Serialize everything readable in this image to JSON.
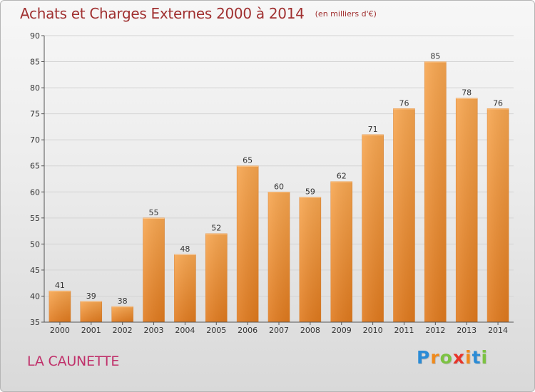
{
  "header": {
    "title": "Achats et Charges Externes 2000 à 2014",
    "subtitle": "(en milliers d'€)"
  },
  "footer": {
    "commune": "LA CAUNETTE",
    "logo_letters": [
      "P",
      "r",
      "o",
      "x",
      "i",
      "t",
      "i"
    ],
    "logo_colors": [
      "#2a8bd6",
      "#f08a1c",
      "#7cc242",
      "#e8342a",
      "#f08a1c",
      "#2a8bd6",
      "#7cc242"
    ]
  },
  "colors": {
    "title": "#a03030",
    "commune": "#c0306a",
    "bar_light": "#f7a650",
    "bar_dark": "#e07a1e",
    "grid": "#d4d4d4",
    "axis": "#555555"
  },
  "chart_data": {
    "type": "bar",
    "title": "Achats et Charges Externes 2000 à 2014",
    "subtitle": "(en milliers d'€)",
    "xlabel": "",
    "ylabel": "",
    "categories": [
      "2000",
      "2001",
      "2002",
      "2003",
      "2004",
      "2005",
      "2006",
      "2007",
      "2008",
      "2009",
      "2010",
      "2011",
      "2012",
      "2013",
      "2014"
    ],
    "values": [
      41,
      39,
      38,
      55,
      48,
      52,
      65,
      60,
      59,
      62,
      71,
      76,
      85,
      78,
      76
    ],
    "ylim": [
      35,
      90
    ],
    "yticks": [
      35,
      40,
      45,
      50,
      55,
      60,
      65,
      70,
      75,
      80,
      85,
      90
    ],
    "grid": true,
    "data_labels": true,
    "legend": "none"
  }
}
